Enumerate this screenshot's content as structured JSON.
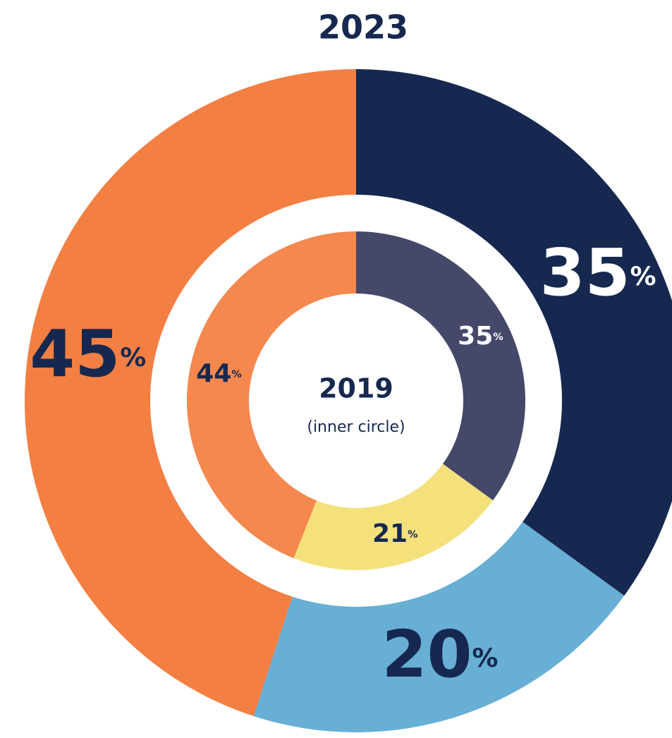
{
  "chart_data": {
    "type": "pie",
    "subtitle": "(inner circle)",
    "series": [
      {
        "name": "2023",
        "values": [
          35,
          20,
          45
        ],
        "value_labels": [
          "35%",
          "20%",
          "45%"
        ],
        "colors": [
          "#16284f",
          "#67afd4",
          "#f47f43"
        ],
        "label_colors": [
          "#ffffff",
          "#16284f",
          "#16284f"
        ]
      },
      {
        "name": "2019",
        "values": [
          35,
          21,
          44
        ],
        "value_labels": [
          "35%",
          "21%",
          "44%"
        ],
        "colors": [
          "#454869",
          "#f5e17c",
          "#f5884f"
        ],
        "label_colors": [
          "#ffffff",
          "#16284f",
          "#16284f"
        ]
      }
    ]
  }
}
